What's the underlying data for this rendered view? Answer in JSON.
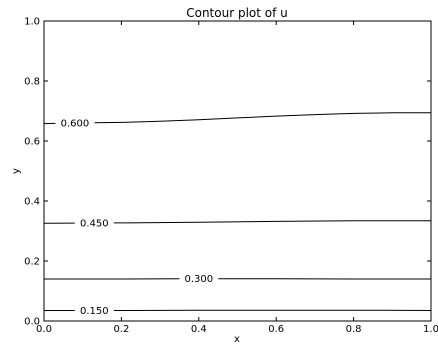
{
  "chart_data": {
    "type": "contour",
    "title": "Contour plot of u",
    "xlabel": "x",
    "ylabel": "y",
    "xlim": [
      0.0,
      1.0
    ],
    "ylim": [
      0.0,
      1.0
    ],
    "x_ticks": [
      "0.0",
      "0.2",
      "0.4",
      "0.6",
      "0.8",
      "1.0"
    ],
    "y_ticks": [
      "0.0",
      "0.2",
      "0.4",
      "0.6",
      "0.8",
      "1.0"
    ],
    "grid": false,
    "series": [
      {
        "level_label": "0.150",
        "label_x": 0.13,
        "x": [
          0.0,
          0.2,
          0.4,
          0.6,
          0.8,
          1.0
        ],
        "y": [
          0.035,
          0.035,
          0.036,
          0.036,
          0.036,
          0.035
        ]
      },
      {
        "level_label": "0.300",
        "label_x": 0.4,
        "x": [
          0.0,
          0.2,
          0.4,
          0.6,
          0.8,
          1.0
        ],
        "y": [
          0.14,
          0.14,
          0.141,
          0.141,
          0.14,
          0.14
        ]
      },
      {
        "level_label": "0.450",
        "label_x": 0.13,
        "x": [
          0.0,
          0.2,
          0.4,
          0.6,
          0.8,
          1.0
        ],
        "y": [
          0.326,
          0.327,
          0.329,
          0.332,
          0.334,
          0.334
        ]
      },
      {
        "level_label": "0.600",
        "label_x": 0.08,
        "x": [
          0.0,
          0.1,
          0.2,
          0.3,
          0.4,
          0.5,
          0.6,
          0.7,
          0.8,
          0.9,
          1.0
        ],
        "y": [
          0.658,
          0.66,
          0.662,
          0.666,
          0.671,
          0.677,
          0.683,
          0.688,
          0.692,
          0.694,
          0.694
        ]
      }
    ]
  }
}
